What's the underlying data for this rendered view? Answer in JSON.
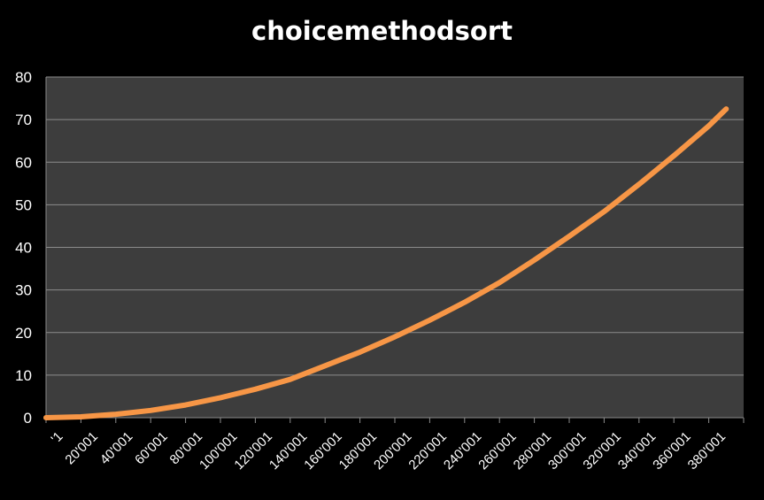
{
  "chart_data": {
    "type": "line",
    "title": "choicemethodsort",
    "xlabel": "",
    "ylabel": "",
    "ylim": [
      0,
      80
    ],
    "yticks": [
      "0",
      "10",
      "20",
      "30",
      "40",
      "50",
      "60",
      "70",
      "80"
    ],
    "categories": [
      "'1",
      "20'001",
      "40'001",
      "60'001",
      "80'001",
      "100'001",
      "120'001",
      "140'001",
      "160'001",
      "180'001",
      "200'001",
      "220'001",
      "240'001",
      "260'001",
      "280'001",
      "300'001",
      "320'001",
      "340'001",
      "360'001",
      "380'001"
    ],
    "x": [
      1,
      20001,
      40001,
      60001,
      80001,
      100001,
      120001,
      140001,
      160001,
      180001,
      200001,
      220001,
      240001,
      260001,
      280001,
      300001,
      320001,
      340001,
      360001,
      380001,
      390001
    ],
    "series": [
      {
        "values": [
          0.0,
          0.2,
          0.8,
          1.7,
          3.0,
          4.7,
          6.7,
          9.0,
          12.2,
          15.4,
          19.0,
          22.9,
          27.1,
          31.7,
          37.0,
          42.6,
          48.4,
          54.8,
          61.5,
          68.5,
          72.5
        ]
      }
    ],
    "grid": true,
    "legend": "none",
    "colors": {
      "background": "#000000",
      "plot_area": "#3d3d3d",
      "line": "#f79646",
      "grid": "#8c8c8c",
      "text": "#ffffff"
    }
  }
}
